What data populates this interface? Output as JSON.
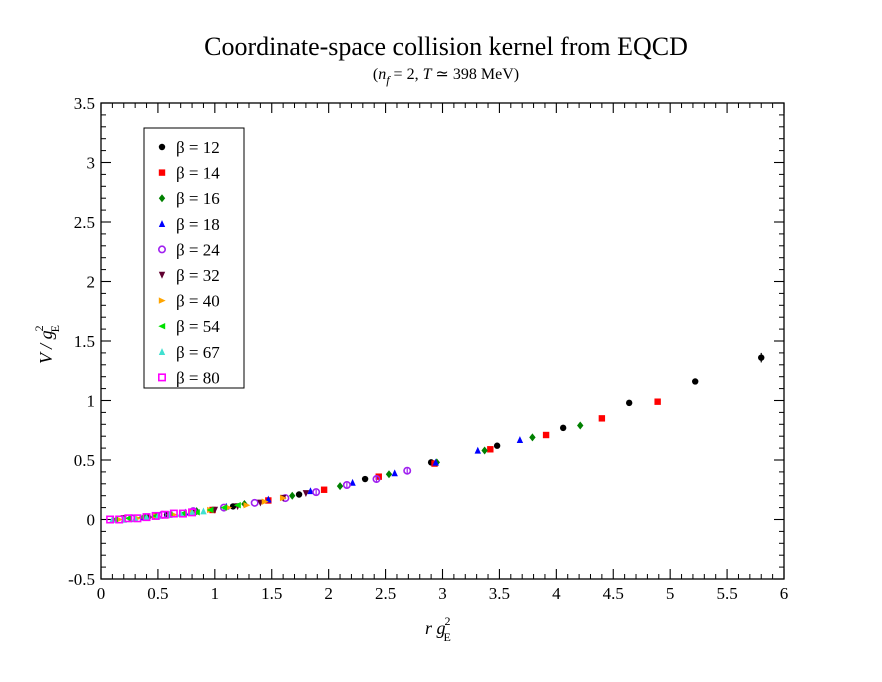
{
  "chart_data": {
    "type": "scatter",
    "title": "Coordinate-space collision kernel from EQCD",
    "subtitle": {
      "open": "(",
      "nf": "n",
      "nf_sub": "f",
      "mid": " = 2, ",
      "T": "T",
      "rest": " ≃ 398 MeV)"
    },
    "xlabel": {
      "var": "r g",
      "sup": "2",
      "sub": "E"
    },
    "ylabel": {
      "var": "V / g",
      "sup": "2",
      "sub": "E"
    },
    "xlim": [
      0,
      6
    ],
    "ylim": [
      -0.5,
      3.5
    ],
    "xticks": [
      "0",
      "0.5",
      "1",
      "1.5",
      "2",
      "2.5",
      "3",
      "3.5",
      "4",
      "4.5",
      "5",
      "5.5",
      "6"
    ],
    "yticks": [
      "-0.5",
      "0",
      "0.5",
      "1",
      "1.5",
      "2",
      "2.5",
      "3",
      "3.5"
    ],
    "legend_position": "top-left",
    "series": [
      {
        "name": "β = 12",
        "color": "#000000",
        "marker": "circle",
        "x": [
          0.58,
          1.16,
          1.74,
          2.32,
          2.9,
          3.48,
          4.06,
          4.64,
          5.22,
          5.8
        ],
        "y": [
          0.04,
          0.11,
          0.21,
          0.34,
          0.48,
          0.62,
          0.77,
          0.98,
          1.16,
          1.36
        ],
        "err": [
          0,
          0,
          0,
          0,
          0,
          0,
          0,
          0,
          0,
          0.04
        ]
      },
      {
        "name": "β = 14",
        "color": "#ff0000",
        "marker": "square",
        "x": [
          0.49,
          0.98,
          1.47,
          1.96,
          2.44,
          2.93,
          3.42,
          3.91,
          4.4,
          4.89
        ],
        "y": [
          0.03,
          0.08,
          0.16,
          0.25,
          0.36,
          0.47,
          0.59,
          0.71,
          0.85,
          0.99
        ],
        "err": [
          0,
          0,
          0,
          0,
          0,
          0,
          0,
          0,
          0,
          0.02
        ]
      },
      {
        "name": "β = 16",
        "color": "#008000",
        "marker": "diamond",
        "x": [
          0.42,
          0.84,
          1.26,
          1.68,
          2.1,
          2.53,
          2.95,
          3.37,
          3.79,
          4.21
        ],
        "y": [
          0.02,
          0.07,
          0.13,
          0.2,
          0.28,
          0.38,
          0.48,
          0.58,
          0.69,
          0.79
        ],
        "err": [
          0,
          0,
          0,
          0,
          0,
          0,
          0,
          0,
          0,
          0
        ]
      },
      {
        "name": "β = 18",
        "color": "#0000ff",
        "marker": "triangle-up",
        "x": [
          0.37,
          0.74,
          1.1,
          1.47,
          1.84,
          2.21,
          2.58,
          2.94,
          3.31,
          3.68
        ],
        "y": [
          0.02,
          0.06,
          0.11,
          0.17,
          0.24,
          0.31,
          0.39,
          0.48,
          0.58,
          0.67
        ],
        "err": [
          0,
          0,
          0,
          0,
          0,
          0,
          0,
          0,
          0,
          0
        ]
      },
      {
        "name": "β = 24",
        "color": "#a020f0",
        "marker": "circle-open",
        "x": [
          0.27,
          0.54,
          0.81,
          1.08,
          1.35,
          1.62,
          1.89,
          2.16,
          2.42,
          2.69
        ],
        "y": [
          0.01,
          0.04,
          0.07,
          0.1,
          0.14,
          0.18,
          0.23,
          0.29,
          0.34,
          0.41
        ],
        "err": [
          0,
          0,
          0,
          0,
          0,
          0.01,
          0.02,
          0.02,
          0.03,
          0.03
        ]
      },
      {
        "name": "β = 32",
        "color": "#600030",
        "marker": "triangle-down",
        "x": [
          0.2,
          0.4,
          0.6,
          0.8,
          1.0,
          1.2,
          1.4,
          1.6,
          1.8
        ],
        "y": [
          0.01,
          0.02,
          0.04,
          0.06,
          0.08,
          0.11,
          0.14,
          0.18,
          0.22
        ],
        "err": [
          0,
          0,
          0,
          0,
          0,
          0,
          0,
          0,
          0
        ]
      },
      {
        "name": "β = 40",
        "color": "#ffa500",
        "marker": "triangle-right",
        "x": [
          0.16,
          0.32,
          0.48,
          0.64,
          0.8,
          0.96,
          1.12,
          1.28,
          1.44,
          1.6
        ],
        "y": [
          0.0,
          0.01,
          0.03,
          0.04,
          0.06,
          0.08,
          0.1,
          0.12,
          0.15,
          0.18
        ],
        "err": [
          0,
          0,
          0,
          0,
          0,
          0,
          0,
          0,
          0,
          0
        ]
      },
      {
        "name": "β = 54",
        "color": "#00e000",
        "marker": "triangle-left",
        "x": [
          0.12,
          0.24,
          0.36,
          0.48,
          0.6,
          0.72,
          0.84,
          0.96,
          1.08,
          1.2
        ],
        "y": [
          0.0,
          0.01,
          0.02,
          0.03,
          0.04,
          0.05,
          0.06,
          0.08,
          0.1,
          0.12
        ],
        "err": [
          0,
          0,
          0,
          0,
          0,
          0,
          0,
          0,
          0,
          0
        ]
      },
      {
        "name": "β = 67",
        "color": "#40e0d0",
        "marker": "triangle-up",
        "x": [
          0.1,
          0.2,
          0.3,
          0.4,
          0.5,
          0.6,
          0.7,
          0.8,
          0.9
        ],
        "y": [
          0.0,
          0.0,
          0.01,
          0.02,
          0.03,
          0.04,
          0.05,
          0.06,
          0.07
        ],
        "err": [
          0,
          0,
          0,
          0,
          0,
          0,
          0,
          0,
          0
        ]
      },
      {
        "name": "β = 80",
        "color": "#ff00ff",
        "marker": "square-open",
        "x": [
          0.08,
          0.16,
          0.24,
          0.32,
          0.4,
          0.48,
          0.56,
          0.64,
          0.72,
          0.8
        ],
        "y": [
          0.0,
          0.0,
          0.01,
          0.01,
          0.02,
          0.03,
          0.04,
          0.05,
          0.05,
          0.06
        ],
        "err": [
          0,
          0,
          0,
          0,
          0,
          0,
          0,
          0,
          0,
          0
        ]
      }
    ]
  }
}
